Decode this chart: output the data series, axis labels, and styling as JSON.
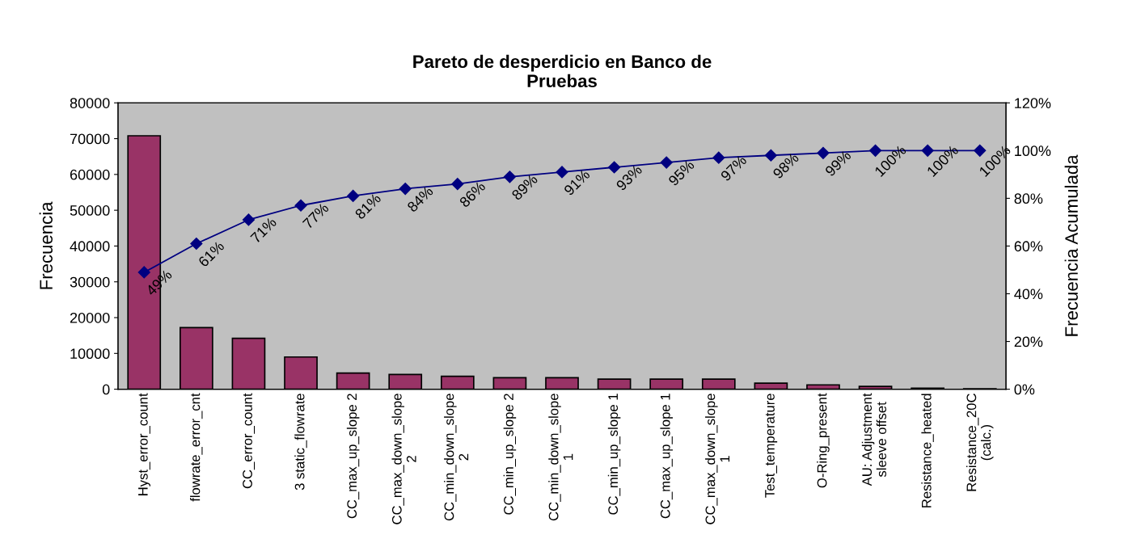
{
  "chart_data": {
    "type": "bar",
    "title": "Pareto de desperdicio en Banco de\nPruebas",
    "ylabel": "Frecuencia",
    "y2label": "Frecuencia Acumulada",
    "categories": [
      "Hyst_error_count",
      "flowrate_error_cnt",
      "CC_error_count",
      "3 static_flowrate",
      "CC_max_up_slope 2",
      "CC_max_down_slope\n2",
      "CC_min_down_slope\n2",
      "CC_min_up_slope 2",
      "CC_min_down_slope\n1",
      "CC_min_up_slope 1",
      "CC_max_up_slope 1",
      "CC_max_down_slope\n1",
      "Test_temperature",
      "O-Ring_present",
      "AU: Adjustment\nsleeve offset",
      "Resistance_heated",
      "Resistance_20C\n(calc.)"
    ],
    "series": [
      {
        "color": "#993366",
        "values": [
          70800,
          17200,
          14200,
          9000,
          4500,
          4100,
          3600,
          3200,
          3200,
          2800,
          2800,
          2800,
          1700,
          1200,
          800,
          300,
          100
        ]
      },
      {
        "type": "line",
        "axis": "y2",
        "color": "#000080",
        "marker": "diamond",
        "values": [
          49,
          61,
          71,
          77,
          81,
          84,
          86,
          89,
          91,
          93,
          95,
          97,
          98,
          99,
          100,
          100,
          100
        ],
        "value_labels": [
          "49%",
          "61%",
          "71%",
          "77%",
          "81%",
          "84%",
          "86%",
          "89%",
          "91%",
          "93%",
          "95%",
          "97%",
          "98%",
          "99%",
          "100%",
          "100%",
          "100%"
        ]
      }
    ],
    "ylim": [
      0,
      80000
    ],
    "yticks": [
      0,
      10000,
      20000,
      30000,
      40000,
      50000,
      60000,
      70000,
      80000
    ],
    "y2lim": [
      0,
      120
    ],
    "y2ticks": [
      {
        "value": 0,
        "label": "0%"
      },
      {
        "value": 20,
        "label": "20%"
      },
      {
        "value": 40,
        "label": "40%"
      },
      {
        "value": 60,
        "label": "60%"
      },
      {
        "value": 80,
        "label": "80%"
      },
      {
        "value": 100,
        "label": "100%"
      },
      {
        "value": 120,
        "label": "120%"
      }
    ],
    "grid": false,
    "legend": false
  }
}
